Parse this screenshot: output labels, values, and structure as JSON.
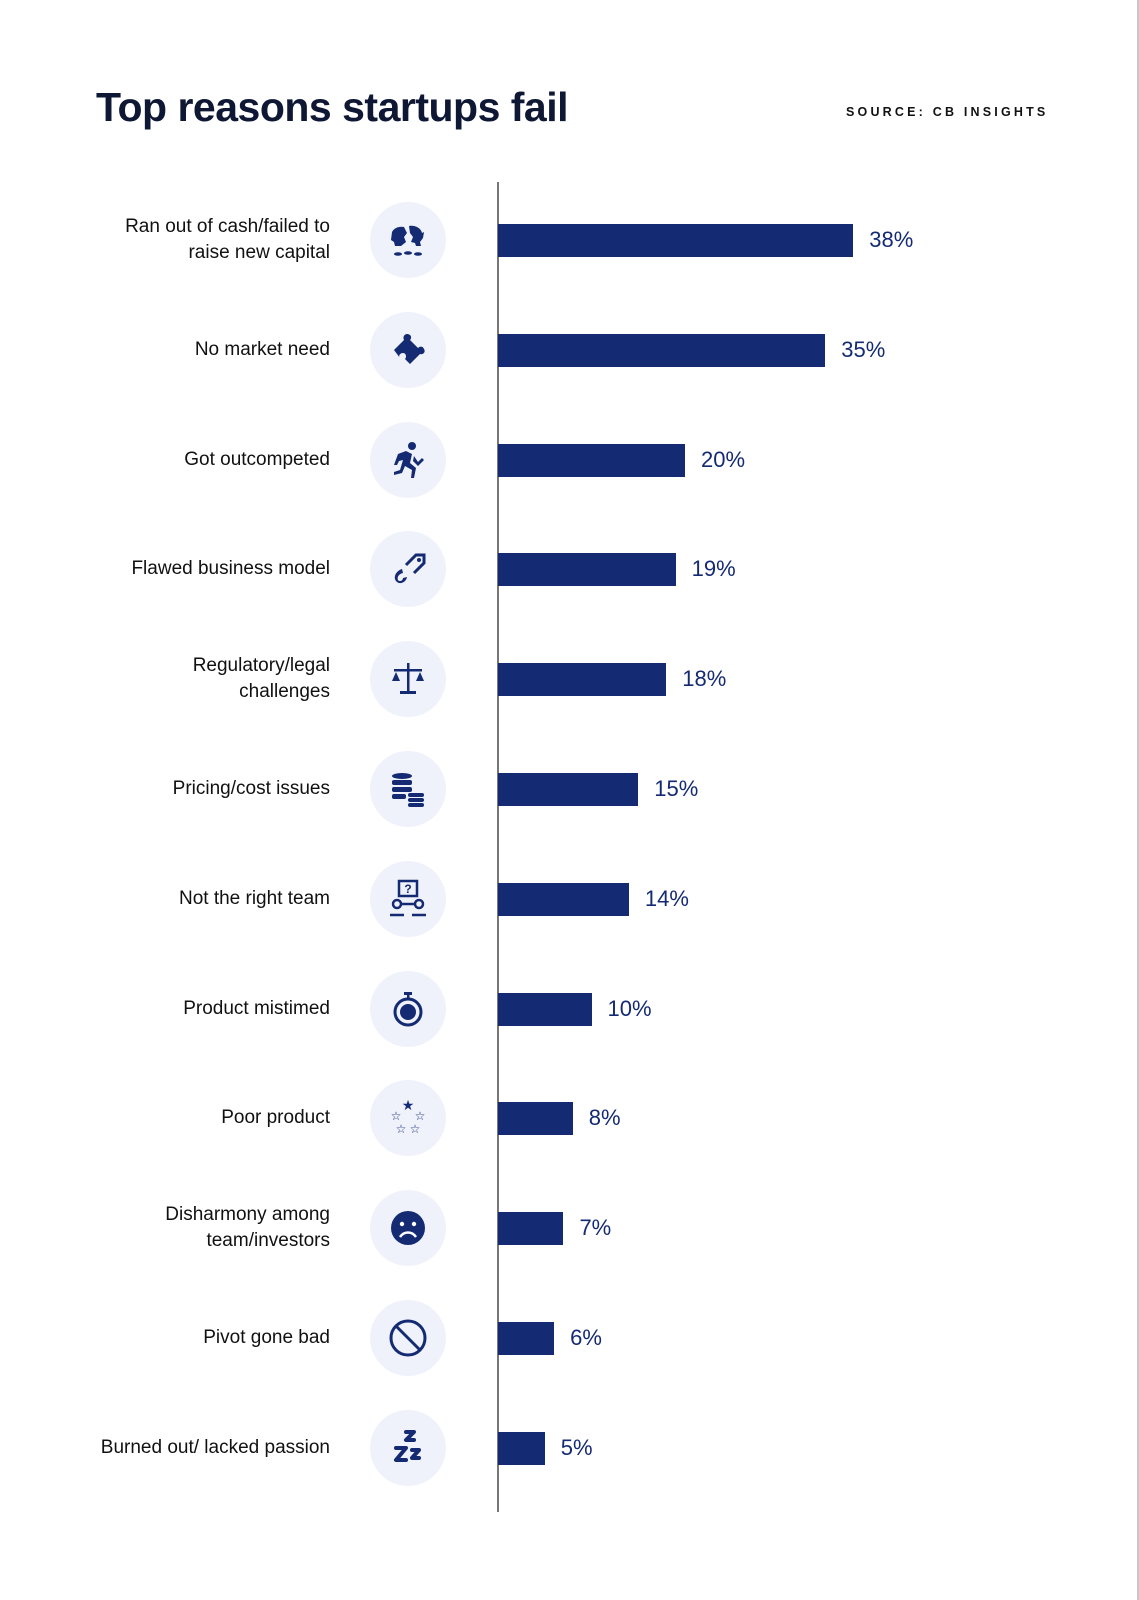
{
  "title": "Top reasons startups fail",
  "source": "SOURCE: CB INSIGHTS",
  "colors": {
    "bar": "#142a73",
    "icon_bg": "#eff2fb",
    "title": "#0e1733"
  },
  "chart_data": {
    "type": "bar",
    "orientation": "horizontal",
    "title": "Top reasons startups fail",
    "categories": [
      "Ran out of cash/failed to raise new capital",
      "No market need",
      "Got outcompeted",
      "Flawed business model",
      "Regulatory/legal challenges",
      "Pricing/cost issues",
      "Not the right team",
      "Product mistimed",
      "Poor product",
      "Disharmony among team/investors",
      "Pivot gone bad",
      "Burned out/ lacked passion"
    ],
    "values": [
      38,
      35,
      20,
      19,
      18,
      15,
      14,
      10,
      8,
      7,
      6,
      5
    ],
    "labels": [
      "38%",
      "35%",
      "20%",
      "19%",
      "18%",
      "15%",
      "14%",
      "10%",
      "8%",
      "7%",
      "6%",
      "5%"
    ],
    "icons": [
      "broken-piggy-bank-icon",
      "puzzle-piece-icon",
      "running-person-icon",
      "broken-tag-icon",
      "scales-icon",
      "coins-stack-icon",
      "team-question-icon",
      "stopwatch-icon",
      "one-star-rating-icon",
      "sad-face-icon",
      "prohibited-icon",
      "sleep-zzz-icon"
    ],
    "xlim": [
      0,
      40
    ],
    "grid": false
  }
}
